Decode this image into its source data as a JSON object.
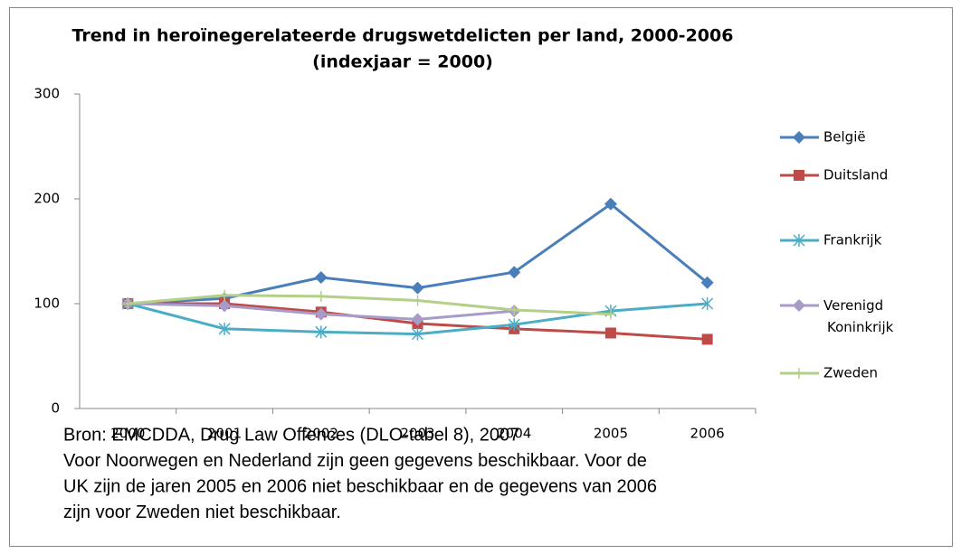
{
  "chart_data": {
    "type": "line",
    "title": "Trend in heroïnegerelateerde drugswetdelicten per land, 2000-2006",
    "subtitle": "(indexjaar = 2000)",
    "categories": [
      "2000",
      "2001",
      "2002",
      "2003",
      "2004",
      "2005",
      "2006"
    ],
    "series": [
      {
        "name": "België",
        "color": "#4a7ebb",
        "marker": "diamond",
        "values": [
          100,
          105,
          125,
          115,
          130,
          195,
          120
        ]
      },
      {
        "name": "Duitsland",
        "color": "#be4b48",
        "marker": "square",
        "values": [
          100,
          100,
          92,
          81,
          76,
          72,
          66
        ]
      },
      {
        "name": "Frankrijk",
        "color": "#4bacc6",
        "marker": "asterisk",
        "values": [
          100,
          76,
          73,
          71,
          80,
          93,
          100
        ]
      },
      {
        "name": "Verenigd Koninkrijk",
        "color": "#a99bc9",
        "marker": "diamond",
        "values": [
          100,
          98,
          90,
          85,
          93,
          null,
          null
        ]
      },
      {
        "name": "Zweden",
        "color": "#b3cf88",
        "marker": "plus",
        "values": [
          100,
          108,
          107,
          103,
          94,
          90,
          null
        ]
      }
    ],
    "ylim": [
      0,
      300
    ],
    "yticks": [
      0,
      100,
      200,
      300
    ],
    "grid": false,
    "legend": "right",
    "notes": [
      "Bron: EMCDDA, Drug Law Offences (DLO-tabel 8), 2007",
      "Voor Noorwegen en Nederland zijn geen gegevens beschikbaar. Voor de",
      "UK zijn de jaren 2005 en 2006 niet beschikbaar en de gegevens van 2006",
      "zijn voor Zweden niet beschikbaar."
    ]
  }
}
